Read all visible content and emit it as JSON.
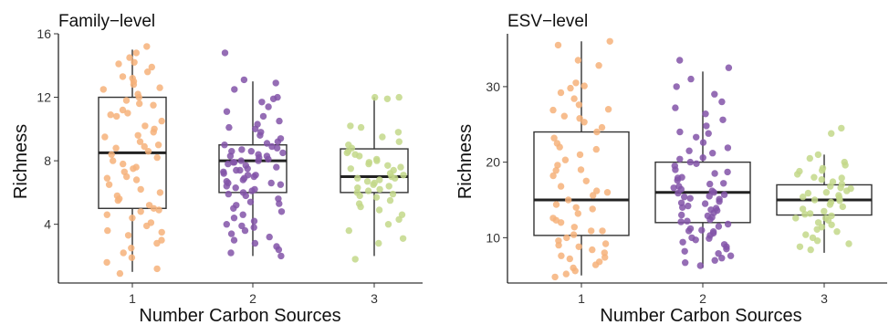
{
  "chart_data": [
    {
      "type": "boxplot",
      "title": "Family−level",
      "xlabel": "Number Carbon Sources",
      "ylabel": "Richness",
      "categories": [
        "1",
        "2",
        "3"
      ],
      "colors": [
        "#f6b27a",
        "#8253a8",
        "#c3d88a"
      ],
      "ylim": [
        0.3,
        16
      ],
      "yticks": [
        4,
        8,
        12,
        16
      ],
      "boxes": [
        {
          "whisker_low": 1,
          "q1": 5,
          "median": 8.5,
          "q3": 12,
          "whisker_high": 15
        },
        {
          "whisker_low": 2,
          "q1": 6,
          "median": 8,
          "q3": 9,
          "whisker_high": 13
        },
        {
          "whisker_low": 2,
          "q1": 6,
          "median": 7,
          "q3": 8.75,
          "whisker_high": 12
        }
      ],
      "points": [
        [
          15.2,
          14.8,
          14.5,
          14.1,
          13.9,
          13.6,
          13.2,
          13.0,
          12.8,
          12.5,
          12.2,
          12.0,
          11.8,
          11.5,
          11.2,
          11.0,
          10.8,
          10.5,
          10.2,
          10.0,
          9.8,
          9.5,
          9.2,
          9.0,
          8.8,
          8.6,
          8.4,
          8.2,
          8.0,
          7.8,
          7.6,
          7.3,
          7.0,
          6.8,
          6.5,
          6.2,
          6.0,
          5.8,
          5.5,
          5.2,
          5.0,
          4.8,
          4.6,
          4.4,
          4.1,
          3.9,
          3.6,
          3.3,
          3.0,
          2.8,
          2.5,
          2.2,
          1.9,
          1.6,
          1.2,
          0.9,
          13.3,
          11.6,
          9.6,
          7.5,
          5.6,
          4.9,
          12.6,
          10.9,
          8.9,
          6.9,
          3.5,
          14.2
        ],
        [
          14.8,
          13.1,
          12.9,
          12.5,
          12.0,
          11.7,
          11.4,
          11.1,
          10.8,
          10.5,
          10.3,
          10.0,
          9.8,
          9.6,
          9.4,
          9.2,
          9.0,
          8.9,
          8.8,
          8.7,
          8.6,
          8.5,
          8.4,
          8.3,
          8.2,
          8.1,
          8.0,
          8.0,
          7.9,
          7.8,
          7.7,
          7.6,
          7.5,
          7.4,
          7.3,
          7.2,
          7.1,
          7.0,
          6.9,
          6.8,
          6.7,
          6.6,
          6.5,
          6.4,
          6.3,
          6.2,
          6.1,
          6.0,
          5.9,
          5.8,
          5.6,
          5.4,
          5.2,
          5.0,
          4.8,
          4.6,
          4.4,
          4.2,
          4.0,
          3.8,
          3.6,
          3.4,
          3.2,
          3.0,
          2.8,
          2.6,
          2.4,
          2.2,
          2.0,
          9.1,
          8.3,
          7.9,
          7.1,
          6.6,
          10.1,
          11.9,
          5.3,
          3.9,
          8.6,
          7.4
        ],
        [
          12.0,
          12.0,
          11.9,
          10.2,
          10.1,
          9.8,
          9.5,
          9.2,
          9.0,
          8.8,
          8.6,
          8.5,
          8.3,
          8.1,
          8.0,
          7.9,
          7.8,
          7.6,
          7.5,
          7.4,
          7.2,
          7.1,
          7.0,
          6.9,
          6.8,
          6.7,
          6.6,
          6.5,
          6.4,
          6.3,
          6.2,
          6.1,
          6.0,
          5.9,
          5.7,
          5.5,
          5.3,
          5.1,
          4.9,
          4.6,
          4.3,
          4.0,
          3.6,
          3.1,
          2.8,
          1.8,
          7.7,
          6.9,
          8.4,
          5.8
        ]
      ]
    },
    {
      "type": "boxplot",
      "title": "ESV−level",
      "xlabel": "Number Carbon Sources",
      "ylabel": "Richness",
      "categories": [
        "1",
        "2",
        "3"
      ],
      "colors": [
        "#f6b27a",
        "#8253a8",
        "#c3d88a"
      ],
      "ylim": [
        4,
        37
      ],
      "yticks": [
        10,
        20,
        30
      ],
      "boxes": [
        {
          "whisker_low": 5,
          "q1": 10.3,
          "median": 15,
          "q3": 24,
          "whisker_high": 36
        },
        {
          "whisker_low": 6,
          "q1": 12,
          "median": 16,
          "q3": 20,
          "whisker_high": 32
        },
        {
          "whisker_low": 8,
          "q1": 13,
          "median": 15,
          "q3": 17,
          "whisker_high": 21
        }
      ],
      "points": [
        [
          36.0,
          35.5,
          33.5,
          32.8,
          30.5,
          29.8,
          29.2,
          28.4,
          27.6,
          26.9,
          26.1,
          25.3,
          24.6,
          24.0,
          23.2,
          22.5,
          21.7,
          21.0,
          20.3,
          19.6,
          18.9,
          18.2,
          17.5,
          16.8,
          16.2,
          15.6,
          15.0,
          14.4,
          13.8,
          13.2,
          12.6,
          12.0,
          11.4,
          10.9,
          10.4,
          10.0,
          9.6,
          9.2,
          8.8,
          8.4,
          8.0,
          7.6,
          7.2,
          6.8,
          6.4,
          6.0,
          5.6,
          5.2,
          4.8,
          30.1,
          27.0,
          22.0,
          19.0,
          16.0,
          14.0,
          12.3,
          9.0,
          7.4,
          10.9,
          25.8
        ],
        [
          33.5,
          32.5,
          31.0,
          30.0,
          29.0,
          28.0,
          27.2,
          26.4,
          25.6,
          24.8,
          24.0,
          23.3,
          22.6,
          21.9,
          21.2,
          20.6,
          20.0,
          19.5,
          19.0,
          18.5,
          18.0,
          17.6,
          17.2,
          16.8,
          16.4,
          16.0,
          15.7,
          15.4,
          15.1,
          14.8,
          14.5,
          14.2,
          13.9,
          13.6,
          13.3,
          13.0,
          12.7,
          12.4,
          12.1,
          11.8,
          11.5,
          11.2,
          10.9,
          10.6,
          10.3,
          10.0,
          9.7,
          9.4,
          9.1,
          8.8,
          8.5,
          8.2,
          7.9,
          7.6,
          7.3,
          7.0,
          6.7,
          6.3,
          17.9,
          16.6,
          15.9,
          15.2,
          14.0,
          19.8,
          21.5,
          12.9,
          11.0,
          18.7,
          23.8,
          9.9,
          13.7,
          16.2,
          15.5,
          14.6,
          20.4,
          12.2,
          17.1,
          10.8
        ],
        [
          24.5,
          23.8,
          21.0,
          20.5,
          20.0,
          19.6,
          19.2,
          18.8,
          18.4,
          18.0,
          17.7,
          17.4,
          17.1,
          16.8,
          16.5,
          16.2,
          15.9,
          15.6,
          15.3,
          15.0,
          14.7,
          14.4,
          14.1,
          13.8,
          13.5,
          13.2,
          12.9,
          12.6,
          12.3,
          12.0,
          11.7,
          11.4,
          11.1,
          10.8,
          10.4,
          10.0,
          9.6,
          9.2,
          8.8,
          8.4,
          16.0,
          14.9,
          17.9,
          13.1,
          15.4,
          18.9,
          12.6,
          16.6
        ]
      ]
    }
  ]
}
